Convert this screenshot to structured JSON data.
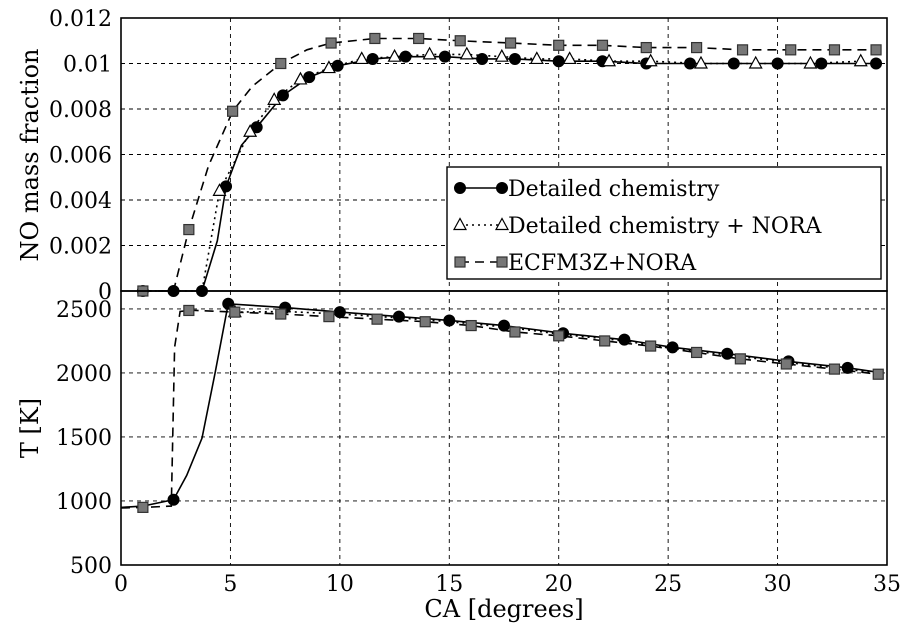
{
  "chart_data": [
    {
      "type": "line",
      "panel": "top",
      "title": "",
      "xlabel": "",
      "ylabel": "NO mass fraction",
      "xlim": [
        0,
        35
      ],
      "ylim": [
        0,
        0.012
      ],
      "x_ticks": [
        0,
        5,
        10,
        15,
        20,
        25,
        30,
        35
      ],
      "y_ticks": [
        0,
        0.002,
        0.004,
        0.006,
        0.008,
        0.01,
        0.012
      ],
      "y_tick_labels": [
        "0",
        "0.002",
        "0.004",
        "0.006",
        "0.008",
        "0.01",
        "0.012"
      ],
      "grid": true,
      "legend_position": "right",
      "series": [
        {
          "name": "Detailed chemistry",
          "style": "solid",
          "marker": "circle",
          "points": [
            [
              1.0,
              0
            ],
            [
              2.4,
              0
            ],
            [
              3.7,
              0
            ],
            [
              4.4,
              0.0022
            ],
            [
              4.8,
              0.0046
            ],
            [
              5.5,
              0.0064
            ],
            [
              6.2,
              0.0072
            ],
            [
              7.4,
              0.0086
            ],
            [
              8.6,
              0.0094
            ],
            [
              9.9,
              0.0099
            ],
            [
              11.5,
              0.0102
            ],
            [
              13.0,
              0.0103
            ],
            [
              14.8,
              0.0103
            ],
            [
              16.5,
              0.0102
            ],
            [
              18.0,
              0.0102
            ],
            [
              20.0,
              0.0101
            ],
            [
              22.0,
              0.0101
            ],
            [
              24.0,
              0.01
            ],
            [
              26.0,
              0.01
            ],
            [
              28.0,
              0.01
            ],
            [
              30.0,
              0.01
            ],
            [
              32.0,
              0.01
            ],
            [
              34.5,
              0.01
            ]
          ],
          "markers_at": [
            1.0,
            2.4,
            3.7,
            4.8,
            6.2,
            7.4,
            8.6,
            9.9,
            11.5,
            13.0,
            14.8,
            16.5,
            18.0,
            20.0,
            22.0,
            24.0,
            26.0,
            28.0,
            30.0,
            32.0,
            34.5
          ]
        },
        {
          "name": "Detailed chemistry + NORA",
          "style": "dotted",
          "marker": "triangle",
          "points": [
            [
              1.0,
              0
            ],
            [
              2.4,
              0
            ],
            [
              3.7,
              0
            ],
            [
              4.5,
              0.0044
            ],
            [
              5.9,
              0.007
            ],
            [
              7.0,
              0.0084
            ],
            [
              8.2,
              0.0093
            ],
            [
              9.5,
              0.0098
            ],
            [
              11.0,
              0.0102
            ],
            [
              12.5,
              0.0103
            ],
            [
              14.1,
              0.0104
            ],
            [
              15.8,
              0.0104
            ],
            [
              17.4,
              0.0103
            ],
            [
              19.0,
              0.0102
            ],
            [
              20.5,
              0.0102
            ],
            [
              22.3,
              0.0101
            ],
            [
              24.2,
              0.0101
            ],
            [
              26.5,
              0.01
            ],
            [
              29.0,
              0.01
            ],
            [
              31.5,
              0.01
            ],
            [
              33.8,
              0.0101
            ]
          ],
          "markers_at": [
            4.5,
            5.9,
            7.0,
            8.2,
            9.5,
            11.0,
            12.5,
            14.1,
            15.8,
            17.4,
            19.0,
            20.5,
            22.3,
            24.2,
            26.5,
            29.0,
            31.5,
            33.8
          ]
        },
        {
          "name": "ECFM3Z+NORA",
          "style": "dashed",
          "marker": "square",
          "points": [
            [
              1.0,
              0
            ],
            [
              2.4,
              0
            ],
            [
              3.1,
              0.0027
            ],
            [
              4.0,
              0.0055
            ],
            [
              5.1,
              0.0079
            ],
            [
              6.0,
              0.009
            ],
            [
              7.3,
              0.01
            ],
            [
              8.5,
              0.0106
            ],
            [
              9.6,
              0.0109
            ],
            [
              11.6,
              0.0111
            ],
            [
              13.6,
              0.0111
            ],
            [
              15.5,
              0.011
            ],
            [
              17.8,
              0.0109
            ],
            [
              20.0,
              0.0108
            ],
            [
              22.0,
              0.0108
            ],
            [
              24.0,
              0.0107
            ],
            [
              26.3,
              0.0107
            ],
            [
              28.4,
              0.0106
            ],
            [
              30.6,
              0.0106
            ],
            [
              32.6,
              0.0106
            ],
            [
              34.5,
              0.0106
            ]
          ],
          "markers_at": [
            1.0,
            3.1,
            5.1,
            7.3,
            9.6,
            11.6,
            13.6,
            15.5,
            17.8,
            20.0,
            22.0,
            24.0,
            26.3,
            28.4,
            30.6,
            32.6,
            34.5
          ]
        }
      ]
    },
    {
      "type": "line",
      "panel": "bottom",
      "title": "",
      "xlabel": "CA [degrees]",
      "ylabel": "T [K]",
      "xlim": [
        0,
        35
      ],
      "ylim": [
        500,
        2640
      ],
      "x_ticks": [
        0,
        5,
        10,
        15,
        20,
        25,
        30,
        35
      ],
      "y_ticks": [
        500,
        1000,
        1500,
        2000,
        2500
      ],
      "grid": true,
      "series": [
        {
          "name": "Detailed chemistry",
          "style": "solid",
          "marker": "circle",
          "points": [
            [
              0,
              950
            ],
            [
              1.0,
              960
            ],
            [
              2.4,
              1010
            ],
            [
              3.0,
              1200
            ],
            [
              3.7,
              1490
            ],
            [
              4.3,
              2000
            ],
            [
              4.9,
              2540
            ],
            [
              7.5,
              2510
            ],
            [
              10.0,
              2475
            ],
            [
              12.7,
              2440
            ],
            [
              15.0,
              2410
            ],
            [
              17.5,
              2370
            ],
            [
              20.2,
              2310
            ],
            [
              23.0,
              2260
            ],
            [
              25.2,
              2200
            ],
            [
              27.7,
              2150
            ],
            [
              30.5,
              2090
            ],
            [
              33.2,
              2040
            ],
            [
              34.8,
              2000
            ]
          ],
          "markers_at": [
            2.4,
            4.9,
            7.5,
            10.0,
            12.7,
            15.0,
            17.5,
            20.2,
            23.0,
            25.2,
            27.7,
            30.5,
            33.2
          ]
        },
        {
          "name": "Detailed chemistry + NORA",
          "style": "dotted",
          "marker": "triangle",
          "points": [
            [
              5.2,
              2475
            ],
            [
              7.5,
              2480
            ],
            [
              10.0,
              2460
            ],
            [
              12.7,
              2430
            ],
            [
              15.0,
              2400
            ],
            [
              17.5,
              2360
            ],
            [
              20.2,
              2300
            ],
            [
              23.0,
              2250
            ],
            [
              25.2,
              2190
            ],
            [
              27.7,
              2140
            ],
            [
              30.5,
              2080
            ],
            [
              33.2,
              2030
            ],
            [
              34.8,
              1990
            ]
          ],
          "markers_at": [
            5.2
          ]
        },
        {
          "name": "ECFM3Z+NORA",
          "style": "dashed",
          "marker": "square",
          "points": [
            [
              0,
              945
            ],
            [
              1.0,
              950
            ],
            [
              2.3,
              960
            ],
            [
              2.45,
              2200
            ],
            [
              2.7,
              2480
            ],
            [
              3.2,
              2490
            ],
            [
              5.2,
              2475
            ],
            [
              7.3,
              2460
            ],
            [
              9.5,
              2440
            ],
            [
              11.7,
              2420
            ],
            [
              13.9,
              2400
            ],
            [
              16.0,
              2370
            ],
            [
              18.0,
              2320
            ],
            [
              20.0,
              2290
            ],
            [
              22.1,
              2250
            ],
            [
              24.2,
              2210
            ],
            [
              26.3,
              2160
            ],
            [
              28.3,
              2110
            ],
            [
              30.4,
              2070
            ],
            [
              32.6,
              2030
            ],
            [
              34.6,
              1990
            ]
          ],
          "markers_at": [
            1.0,
            3.1,
            5.2,
            7.3,
            9.5,
            11.7,
            13.9,
            16.0,
            18.0,
            20.0,
            22.1,
            24.2,
            26.3,
            28.3,
            30.4,
            32.6,
            34.6
          ]
        }
      ]
    }
  ]
}
